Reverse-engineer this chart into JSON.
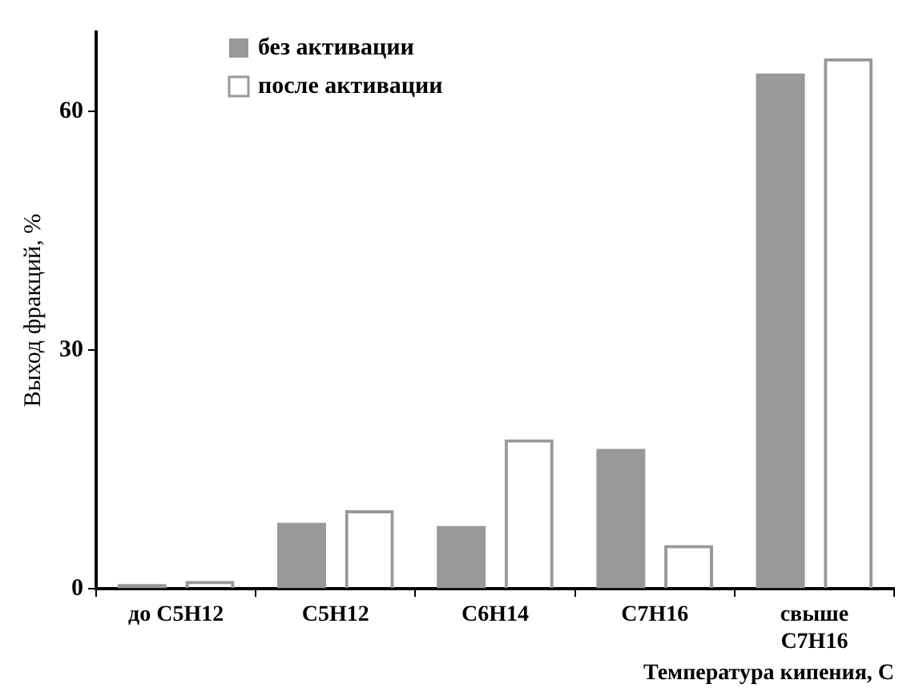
{
  "chart_data": {
    "type": "bar",
    "xlabel": "Температура кипения, С",
    "ylabel": "Выход фракций, %",
    "categories": [
      "до C5H12",
      "C5H12",
      "C6H14",
      "C7H16",
      "свыше C7H16"
    ],
    "series": [
      {
        "name": "без активации",
        "color": "#999999",
        "values": [
          0.6,
          8.3,
          7.9,
          17.6,
          64.8
        ]
      },
      {
        "name": "после активации",
        "color": "#999999",
        "values": [
          1.0,
          9.9,
          18.8,
          5.5,
          66.7
        ]
      }
    ],
    "ylim": [
      0,
      70
    ],
    "yticks": [
      0,
      30,
      60
    ],
    "grid": false,
    "legend": "top left"
  }
}
